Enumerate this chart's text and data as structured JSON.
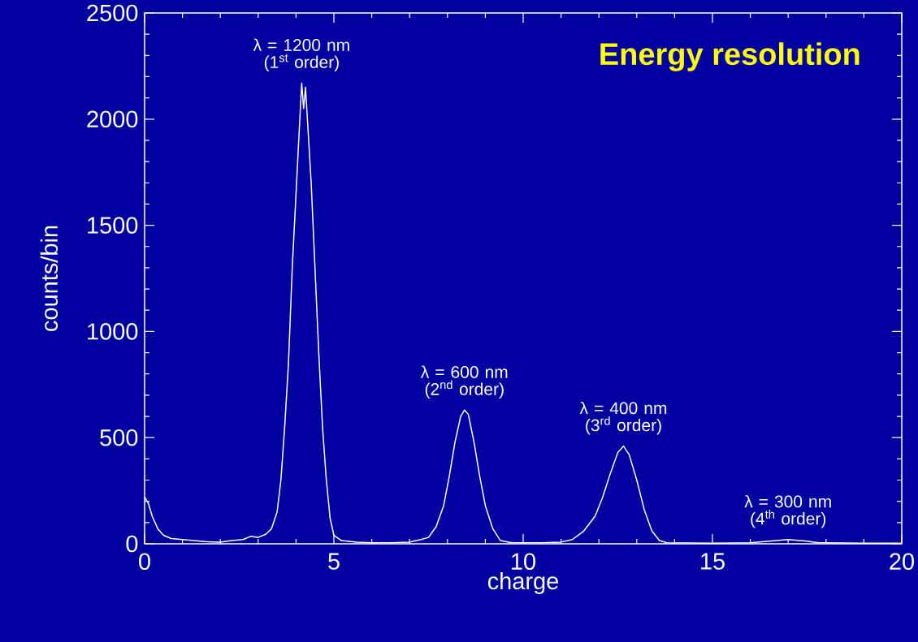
{
  "chart_data": {
    "type": "line",
    "title": "Energy resolution",
    "xlabel": "charge",
    "ylabel": "counts/bin",
    "x": [
      0,
      0.1,
      0.2,
      0.35,
      0.5,
      0.7,
      1.0,
      1.3,
      1.6,
      2.0,
      2.3,
      2.6,
      2.8,
      3.0,
      3.2,
      3.35,
      3.5,
      3.6,
      3.7,
      3.8,
      3.9,
      4.0,
      4.1,
      4.15,
      4.2,
      4.25,
      4.3,
      4.4,
      4.5,
      4.6,
      4.7,
      4.8,
      4.9,
      5.0,
      5.2,
      5.6,
      6.0,
      6.5,
      7.0,
      7.3,
      7.5,
      7.7,
      7.9,
      8.05,
      8.2,
      8.35,
      8.45,
      8.55,
      8.7,
      8.85,
      9.0,
      9.2,
      9.4,
      9.7,
      10.5,
      11.0,
      11.3,
      11.6,
      11.9,
      12.1,
      12.3,
      12.5,
      12.65,
      12.8,
      13.0,
      13.2,
      13.4,
      13.6,
      13.8,
      15.0,
      16.0,
      16.5,
      17.0,
      17.5,
      17.8,
      19.0,
      20
    ],
    "values": [
      220,
      190,
      130,
      70,
      40,
      25,
      20,
      15,
      10,
      8,
      15,
      20,
      35,
      30,
      45,
      70,
      150,
      300,
      550,
      850,
      1300,
      1650,
      2000,
      2170,
      2050,
      2150,
      2000,
      1700,
      1300,
      900,
      550,
      300,
      120,
      40,
      15,
      8,
      5,
      5,
      8,
      20,
      30,
      80,
      180,
      320,
      480,
      600,
      630,
      610,
      480,
      320,
      180,
      70,
      15,
      5,
      5,
      8,
      20,
      60,
      130,
      220,
      330,
      430,
      460,
      420,
      300,
      160,
      60,
      15,
      5,
      3,
      5,
      12,
      20,
      12,
      5,
      3,
      3
    ],
    "color": "#ffffff",
    "marker": "none",
    "line_style": "solid",
    "grid": false,
    "xlim": [
      0,
      20
    ],
    "xticks": [
      0,
      5,
      10,
      15,
      20
    ],
    "ylim": [
      0,
      2500
    ],
    "yticks": [
      0,
      500,
      1000,
      1500,
      2000,
      2500
    ],
    "annotations": [
      {
        "text": "λ = 1200 nm (1$^{st}$ order)",
        "x": 4.15,
        "y": 2170
      },
      {
        "text": "λ = 600 nm (2$^{nd}$ order)",
        "x": 8.45,
        "y": 630
      },
      {
        "text": "λ = 400 nm (3$^{rd}$ order)",
        "x": 12.65,
        "y": 460
      },
      {
        "text": "λ = 300 nm (4$^{th}$ order)",
        "x": 17.0,
        "y": 20
      }
    ]
  }
}
